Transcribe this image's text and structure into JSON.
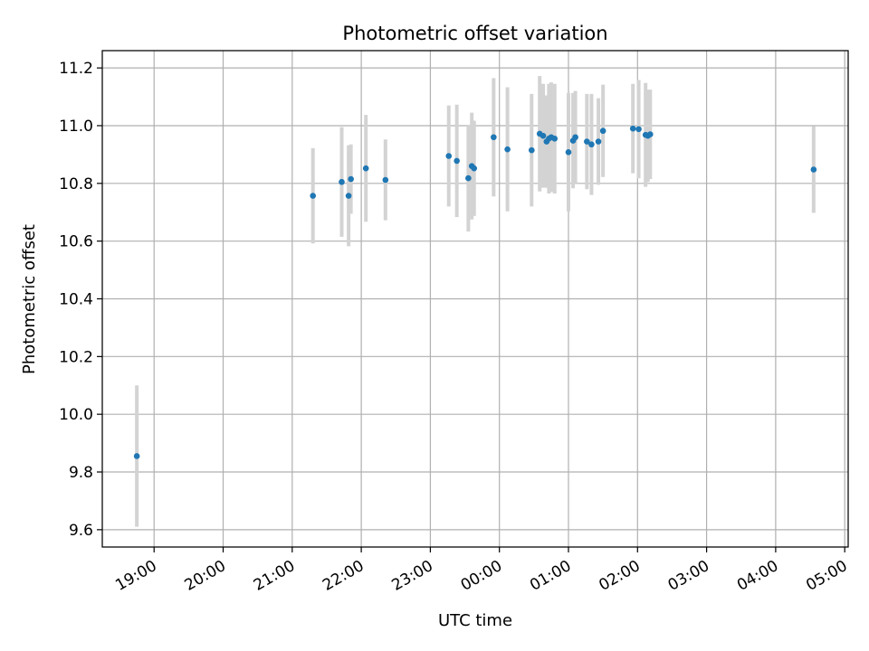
{
  "chart_data": {
    "type": "scatter",
    "title": "Photometric offset variation",
    "xlabel": "UTC time",
    "ylabel": "Photometric offset",
    "x_tick_labels": [
      "19:00",
      "20:00",
      "21:00",
      "22:00",
      "23:00",
      "00:00",
      "01:00",
      "02:00",
      "03:00",
      "04:00",
      "05:00"
    ],
    "y_tick_labels": [
      "9.6",
      "9.8",
      "10.0",
      "10.2",
      "10.4",
      "10.6",
      "10.8",
      "11.0",
      "11.2"
    ],
    "y_ticks": [
      9.6,
      9.8,
      10.0,
      10.2,
      10.4,
      10.6,
      10.8,
      11.0,
      11.2
    ],
    "xlim": [
      "18:15",
      "05:03"
    ],
    "ylim": [
      9.54,
      11.26
    ],
    "grid": true,
    "colors": {
      "marker": "#1f77b4",
      "errorbar": "#d3d3d3",
      "grid": "#b0b0b0"
    },
    "points": [
      {
        "x": "18:45",
        "y": 9.855,
        "err": 0.245
      },
      {
        "x": "21:18",
        "y": 10.757,
        "err": 0.165
      },
      {
        "x": "21:43",
        "y": 10.805,
        "err": 0.19
      },
      {
        "x": "21:49",
        "y": 10.757,
        "err": 0.175
      },
      {
        "x": "21:51",
        "y": 10.815,
        "err": 0.12
      },
      {
        "x": "22:04",
        "y": 10.852,
        "err": 0.185
      },
      {
        "x": "22:21",
        "y": 10.812,
        "err": 0.14
      },
      {
        "x": "23:16",
        "y": 10.895,
        "err": 0.175
      },
      {
        "x": "23:23",
        "y": 10.878,
        "err": 0.195
      },
      {
        "x": "23:33",
        "y": 10.818,
        "err": 0.185
      },
      {
        "x": "23:36",
        "y": 10.86,
        "err": 0.185
      },
      {
        "x": "23:38",
        "y": 10.852,
        "err": 0.165
      },
      {
        "x": "23:55",
        "y": 10.96,
        "err": 0.205
      },
      {
        "x": "00:07",
        "y": 10.918,
        "err": 0.215
      },
      {
        "x": "00:28",
        "y": 10.915,
        "err": 0.195
      },
      {
        "x": "00:35",
        "y": 10.972,
        "err": 0.2
      },
      {
        "x": "00:38",
        "y": 10.965,
        "err": 0.18
      },
      {
        "x": "00:41",
        "y": 10.945,
        "err": 0.16
      },
      {
        "x": "00:43",
        "y": 10.955,
        "err": 0.19
      },
      {
        "x": "00:45",
        "y": 10.96,
        "err": 0.19
      },
      {
        "x": "00:48",
        "y": 10.955,
        "err": 0.19
      },
      {
        "x": "01:00",
        "y": 10.908,
        "err": 0.205
      },
      {
        "x": "01:04",
        "y": 10.948,
        "err": 0.165
      },
      {
        "x": "01:06",
        "y": 10.96,
        "err": 0.16
      },
      {
        "x": "01:16",
        "y": 10.945,
        "err": 0.165
      },
      {
        "x": "01:20",
        "y": 10.935,
        "err": 0.175
      },
      {
        "x": "01:26",
        "y": 10.945,
        "err": 0.15
      },
      {
        "x": "01:30",
        "y": 10.982,
        "err": 0.16
      },
      {
        "x": "01:56",
        "y": 10.99,
        "err": 0.155
      },
      {
        "x": "02:01",
        "y": 10.988,
        "err": 0.17
      },
      {
        "x": "02:07",
        "y": 10.968,
        "err": 0.18
      },
      {
        "x": "02:09",
        "y": 10.965,
        "err": 0.16
      },
      {
        "x": "02:11",
        "y": 10.97,
        "err": 0.155
      },
      {
        "x": "04:33",
        "y": 10.848,
        "err": 0.15
      }
    ]
  }
}
